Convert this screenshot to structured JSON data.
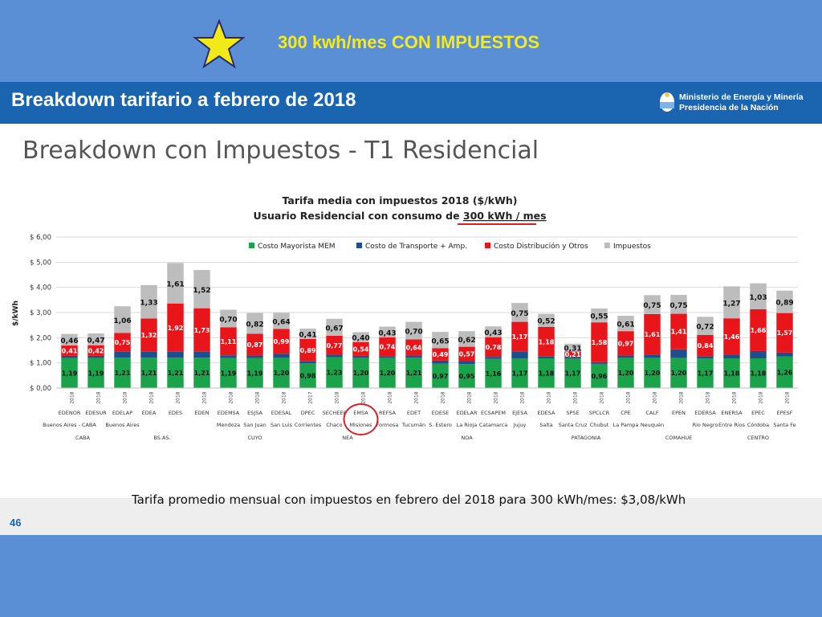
{
  "banner": {
    "title": "300 kwh/mes CON IMPUESTOS"
  },
  "header": {
    "title": "Breakdown tarifario a febrero de 2018",
    "ministry_line1": "Ministerio de Energía y Minería",
    "ministry_line2": "Presidencia de la Nación"
  },
  "slide": {
    "title": "Breakdown con Impuestos - T1 Residencial",
    "footer_note": "Tarifa promedio mensual con impuestos en febrero del 2018 para 300 kWh/mes: $3,08/kWh",
    "page_number": "46"
  },
  "colors": {
    "band": "#5b8fd5",
    "header": "#1a64b0",
    "banner_text": "#f5ea1a",
    "mayorista": "#1aa34a",
    "transporte": "#1f4e8c",
    "distribucion": "#e8161b",
    "impuestos": "#bdbdbd",
    "highlight": "#d42027"
  },
  "chart_data": {
    "type": "bar",
    "stacked": true,
    "title": "Tarifa media con impuestos  2018 ($/kWh)",
    "subtitle_prefix": "Usuario Residencial con consumo de ",
    "subtitle_highlight": "300 kWh / mes",
    "ylabel": "$/kWh",
    "ylim": [
      0,
      6
    ],
    "yticks": [
      "$ 0,00",
      "$ 1,00",
      "$ 2,00",
      "$ 3,00",
      "$ 4,00",
      "$ 5,00",
      "$ 6,00"
    ],
    "grid": true,
    "legend_position": "top",
    "legend": [
      "Costo Mayorista MEM",
      "Costo de Transporte + Amp.",
      "Costo Distribución y Otros",
      "Impuestos"
    ],
    "categories": [
      "EDENOR",
      "EDESUR",
      "EDELAP",
      "EDEA",
      "EDES",
      "EDEN",
      "EDEMSA",
      "ESJSA",
      "EDESAL",
      "DPEC",
      "SECHEEP",
      "EMSA",
      "REFSA",
      "EDET",
      "EDESE",
      "EDELAR",
      "ECSAPEM",
      "EJESA",
      "EDESA",
      "SPSE",
      "SPCLCR",
      "CPE",
      "CALF",
      "EPEN",
      "EDERSA",
      "ENERSA",
      "EPEC",
      "EPESF"
    ],
    "years": [
      "2018",
      "2018",
      "2018",
      "2018",
      "2018",
      "2018",
      "2018",
      "2018",
      "2018",
      "2017",
      "2018",
      "2018",
      "2018",
      "2018",
      "2018",
      "2018",
      "2018",
      "2018",
      "2018",
      "2018",
      "2018",
      "2018",
      "2018",
      "2018",
      "2018",
      "2018",
      "2018",
      "2018"
    ],
    "cities": [
      "Buenos Aires - CABA",
      "",
      "Buenos Aires",
      "",
      "",
      "",
      "Mendoza",
      "San Juan",
      "San Luis",
      "Corrientes",
      "Chaco",
      "Misiones",
      "Formosa",
      "Tucumán",
      "S. Estero",
      "La Rioja",
      "Catamarca",
      "Jujuy",
      "Salta",
      "Santa Cruz",
      "Chubut",
      "La Pampa",
      "Neuquén",
      "",
      "Rio Negro",
      "Entre Rios",
      "Córdoba",
      "Santa Fe"
    ],
    "regions": [
      "CABA",
      "BS.AS.",
      "CUYO",
      "NEA",
      "NOA",
      "PATAGONIA",
      "COMAHUE",
      "CENTRO"
    ],
    "highlighted_category": "EMSA",
    "series": [
      {
        "name": "Costo Mayorista MEM",
        "values": [
          1.19,
          1.19,
          1.21,
          1.21,
          1.21,
          1.21,
          1.19,
          1.19,
          1.2,
          0.98,
          1.23,
          1.2,
          1.2,
          1.21,
          0.97,
          0.95,
          1.16,
          1.17,
          1.18,
          1.17,
          0.96,
          1.2,
          1.2,
          1.2,
          1.17,
          1.18,
          1.18,
          1.26
        ]
      },
      {
        "name": "Costo de Transporte + Amp.",
        "values": [
          0.09,
          0.09,
          0.23,
          0.23,
          0.23,
          0.23,
          0.11,
          0.1,
          0.16,
          0.08,
          0.08,
          0.08,
          0.07,
          0.08,
          0.12,
          0.12,
          0.08,
          0.29,
          0.07,
          0.07,
          0.07,
          0.09,
          0.13,
          0.34,
          0.1,
          0.13,
          0.29,
          0.15
        ]
      },
      {
        "name": "Costo Distribución y Otros",
        "values": [
          0.41,
          0.42,
          0.75,
          1.32,
          1.92,
          1.73,
          1.11,
          0.87,
          0.99,
          0.89,
          0.77,
          0.54,
          0.74,
          0.64,
          0.49,
          0.57,
          0.78,
          1.17,
          1.18,
          0.21,
          1.58,
          0.97,
          1.61,
          1.41,
          0.84,
          1.46,
          1.66,
          1.57
        ]
      },
      {
        "name": "Impuestos",
        "values": [
          0.46,
          0.47,
          1.06,
          1.33,
          1.61,
          1.52,
          0.7,
          0.82,
          0.64,
          0.41,
          0.67,
          0.4,
          0.43,
          0.7,
          0.65,
          0.62,
          0.43,
          0.75,
          0.52,
          0.31,
          0.55,
          0.61,
          0.75,
          0.75,
          0.72,
          1.27,
          1.03,
          0.89
        ]
      }
    ],
    "mayorista_labels": [
      "1,19",
      "1,19",
      "1,21",
      "1,21",
      "1,21",
      "1,21",
      "1,19",
      "1,19",
      "1,20",
      "0,98",
      "1,23",
      "1,20",
      "1,20",
      "1,21",
      "0,97",
      "0,95",
      "1,16",
      "1,17",
      "1,18",
      "1,17",
      "0,96",
      "1,20",
      "1,20",
      "1,20",
      "1,17",
      "1,18",
      "1,18",
      "1,26"
    ],
    "distribucion_labels": [
      "0,41",
      "0,42",
      "0,75",
      "1,32",
      "1,92",
      "1,73",
      "1,11",
      "0,87",
      "0,99",
      "0,89",
      "0,77",
      "0,54",
      "0,74",
      "0,64",
      "0,49",
      "0,57",
      "0,78",
      "1,17",
      "1,18",
      "0,21",
      "1,58",
      "0,97",
      "1,61",
      "1,41",
      "0,84",
      "1,46",
      "1,66",
      "1,57"
    ],
    "impuestos_labels": [
      "0,46",
      "0,47",
      "1,06",
      "1,33",
      "1,61",
      "1,52",
      "0,70",
      "0,82",
      "0,64",
      "0,41",
      "0,67",
      "0,40",
      "0,43",
      "0,70",
      "0,65",
      "0,62",
      "0,43",
      "0,75",
      "0,52",
      "0,31",
      "0,55",
      "0,61",
      "0,75",
      "0,75",
      "0,72",
      "1,27",
      "1,03",
      "0,89"
    ]
  }
}
